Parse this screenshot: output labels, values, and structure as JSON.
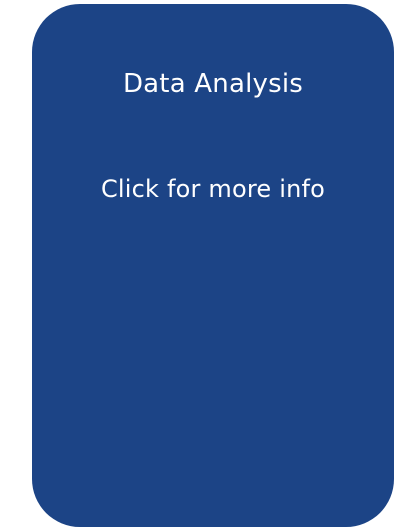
{
  "card": {
    "title": "Data Analysis",
    "link_label": "Click for more info",
    "background_color": "#1c4486",
    "text_color": "#ffffff"
  }
}
